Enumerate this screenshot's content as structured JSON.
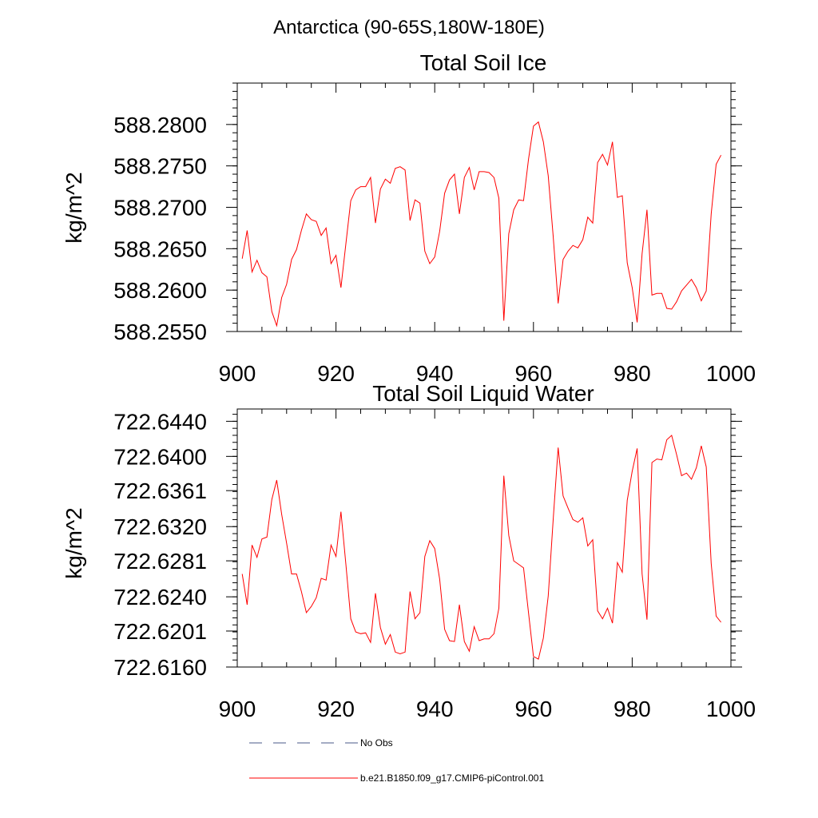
{
  "header": {
    "region": "Antarctica (90-65S,180W-180E)"
  },
  "chart_data": [
    {
      "type": "line",
      "title": "Total Soil Ice",
      "ylabel": "kg/m^2",
      "xlabel": "",
      "xlim": [
        900,
        1000
      ],
      "ylim": [
        588.255,
        588.285
      ],
      "grid": false,
      "x_ticks": [
        "900",
        "920",
        "940",
        "960",
        "980",
        "1000"
      ],
      "y_ticks": [
        "588.2550",
        "588.2600",
        "588.2650",
        "588.2700",
        "588.2750",
        "588.2800"
      ],
      "series": [
        {
          "name": "b.e21.B1850.f09_g17.CMIP6-piControl.001",
          "color": "#ff0000",
          "x": [
            901,
            902,
            903,
            904,
            905,
            906,
            907,
            908,
            909,
            910,
            911,
            912,
            913,
            914,
            915,
            916,
            917,
            918,
            919,
            920,
            921,
            922,
            923,
            924,
            925,
            926,
            927,
            928,
            929,
            930,
            931,
            932,
            933,
            934,
            935,
            936,
            937,
            938,
            939,
            940,
            941,
            942,
            943,
            944,
            945,
            946,
            947,
            948,
            949,
            950,
            951,
            952,
            953,
            954,
            955,
            956,
            957,
            958,
            959,
            960,
            961,
            962,
            963,
            964,
            965,
            966,
            967,
            968,
            969,
            970,
            971,
            972,
            973,
            974,
            975,
            976,
            977,
            978,
            979,
            980,
            981,
            982,
            983,
            984,
            985,
            986,
            987,
            988,
            989,
            990,
            991,
            992,
            993,
            994,
            995,
            996,
            997,
            998
          ],
          "values": [
            588.2638,
            588.2672,
            588.2622,
            588.2636,
            588.2621,
            588.2616,
            588.2574,
            588.2557,
            588.2591,
            588.2607,
            588.2637,
            588.2649,
            588.2672,
            588.2692,
            588.2685,
            588.2683,
            588.2666,
            588.2675,
            588.2632,
            588.2642,
            588.2603,
            588.2656,
            588.2708,
            588.2721,
            588.2725,
            588.2725,
            588.2736,
            588.2681,
            588.2722,
            588.2734,
            588.2729,
            588.2747,
            588.2749,
            588.2745,
            588.2684,
            588.2709,
            588.2705,
            588.2647,
            588.2632,
            588.264,
            588.2671,
            588.2717,
            588.2733,
            588.274,
            588.2692,
            588.2736,
            588.2748,
            588.2721,
            588.2743,
            588.2743,
            588.2742,
            588.2736,
            588.2711,
            588.2563,
            588.2668,
            588.2697,
            588.2709,
            588.2708,
            588.2758,
            588.2798,
            588.2803,
            588.2779,
            588.2738,
            588.2665,
            588.2584,
            588.2637,
            588.2647,
            588.2654,
            588.2651,
            588.2661,
            588.2688,
            588.2681,
            588.2754,
            588.2764,
            588.2751,
            588.2779,
            588.2712,
            588.2714,
            588.2633,
            588.2603,
            588.2561,
            588.2644,
            588.2697,
            588.2594,
            588.2596,
            588.2596,
            588.2578,
            588.2577,
            588.2586,
            588.2599,
            588.2606,
            588.2613,
            588.2603,
            588.2587,
            588.2599,
            588.2692,
            588.2752,
            588.2763
          ]
        }
      ]
    },
    {
      "type": "line",
      "title": "Total Soil Liquid Water",
      "ylabel": "kg/m^2",
      "xlabel": "",
      "xlim": [
        900,
        1000
      ],
      "ylim": [
        722.616,
        722.6454
      ],
      "grid": false,
      "x_ticks": [
        "900",
        "920",
        "940",
        "960",
        "980",
        "1000"
      ],
      "y_ticks": [
        "722.6160",
        "722.6201",
        "722.6240",
        "722.6281",
        "722.6320",
        "722.6361",
        "722.6400",
        "722.6440"
      ],
      "series": [
        {
          "name": "b.e21.B1850.f09_g17.CMIP6-piControl.001",
          "color": "#ff0000",
          "x": [
            901,
            902,
            903,
            904,
            905,
            906,
            907,
            908,
            909,
            910,
            911,
            912,
            913,
            914,
            915,
            916,
            917,
            918,
            919,
            920,
            921,
            922,
            923,
            924,
            925,
            926,
            927,
            928,
            929,
            930,
            931,
            932,
            933,
            934,
            935,
            936,
            937,
            938,
            939,
            940,
            941,
            942,
            943,
            944,
            945,
            946,
            947,
            948,
            949,
            950,
            951,
            952,
            953,
            954,
            955,
            956,
            957,
            958,
            959,
            960,
            961,
            962,
            963,
            964,
            965,
            966,
            967,
            968,
            969,
            970,
            971,
            972,
            973,
            974,
            975,
            976,
            977,
            978,
            979,
            980,
            981,
            982,
            983,
            984,
            985,
            986,
            987,
            988,
            989,
            990,
            991,
            992,
            993,
            994,
            995,
            996,
            997,
            998
          ],
          "values": [
            722.6266,
            722.6231,
            722.6299,
            722.6285,
            722.6306,
            722.6308,
            722.6351,
            722.6373,
            722.6334,
            722.6301,
            722.6266,
            722.6266,
            722.6246,
            722.6222,
            722.6229,
            722.6239,
            722.6261,
            722.6259,
            722.6299,
            722.6286,
            722.6337,
            722.6277,
            722.6215,
            722.62,
            722.6198,
            722.6199,
            722.6188,
            722.6244,
            722.6205,
            722.6186,
            722.6197,
            722.6177,
            722.6175,
            722.6177,
            722.6246,
            722.6215,
            722.6222,
            722.6286,
            722.6304,
            722.6295,
            722.626,
            722.6203,
            722.619,
            722.6189,
            722.6231,
            722.6189,
            722.6178,
            722.6206,
            722.619,
            722.6192,
            722.6192,
            722.6198,
            722.6227,
            722.6378,
            722.631,
            722.6281,
            722.6277,
            722.6273,
            722.6222,
            722.6172,
            722.6169,
            722.6193,
            722.6241,
            722.6328,
            722.641,
            722.6355,
            722.6341,
            722.6328,
            722.6325,
            722.633,
            722.6298,
            722.6305,
            722.6224,
            722.6215,
            722.6227,
            722.621,
            722.6279,
            722.6268,
            722.635,
            722.6383,
            722.6409,
            722.6266,
            722.6214,
            722.6393,
            722.6397,
            722.6396,
            722.6419,
            722.6424,
            722.6402,
            722.6378,
            722.6381,
            722.6374,
            722.6387,
            722.6412,
            722.6388,
            722.6278,
            722.6218,
            722.6211
          ]
        }
      ]
    }
  ],
  "legend": {
    "placement": "bottom-left",
    "entries": [
      {
        "label": "No Obs",
        "color": "#4a5a8a",
        "style": "dashed"
      },
      {
        "label": "b.e21.B1850.f09_g17.CMIP6-piControl.001",
        "color": "#ff0000",
        "style": "solid"
      }
    ]
  }
}
